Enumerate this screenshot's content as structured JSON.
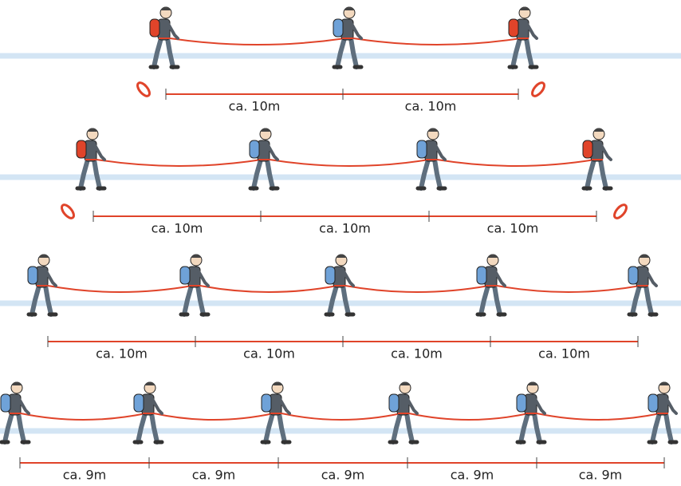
{
  "rows": [
    {
      "labels": [
        "ca. 10m",
        "ca. 10m"
      ]
    },
    {
      "labels": [
        "ca. 10m",
        "ca. 10m",
        "ca. 10m"
      ]
    },
    {
      "labels": [
        "ca. 10m",
        "ca. 10m",
        "ca. 10m",
        "ca. 10m"
      ]
    },
    {
      "labels": [
        "ca. 9m",
        "ca. 9m",
        "ca. 9m",
        "ca. 9m",
        "ca. 9m"
      ]
    }
  ]
}
